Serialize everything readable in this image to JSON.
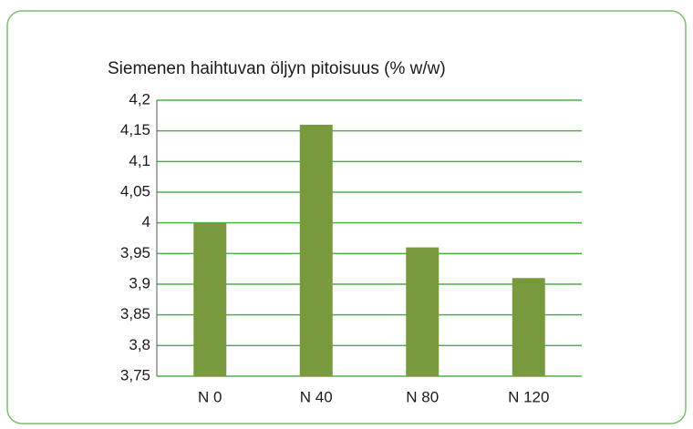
{
  "chart_data": {
    "type": "bar",
    "title": "Siemenen haihtuvan öljyn pitoisuus (% w/w)",
    "categories": [
      "N 0",
      "N 40",
      "N 80",
      "N 120"
    ],
    "values": [
      4.0,
      4.16,
      3.96,
      3.91
    ],
    "color": "#799a3c",
    "ylim": [
      3.75,
      4.2
    ],
    "yticks": [
      {
        "value": 3.75,
        "label": "3,75"
      },
      {
        "value": 3.8,
        "label": "3,8"
      },
      {
        "value": 3.85,
        "label": "3,85"
      },
      {
        "value": 3.9,
        "label": "3,9"
      },
      {
        "value": 3.95,
        "label": "3,95"
      },
      4,
      {
        "value": 4.05,
        "label": "4,05"
      },
      {
        "value": 4.1,
        "label": "4,1"
      },
      {
        "value": 4.15,
        "label": "4,15"
      },
      {
        "value": 4.2,
        "label": "4,2"
      }
    ],
    "grid": true,
    "grid_color": "#4db04a"
  }
}
